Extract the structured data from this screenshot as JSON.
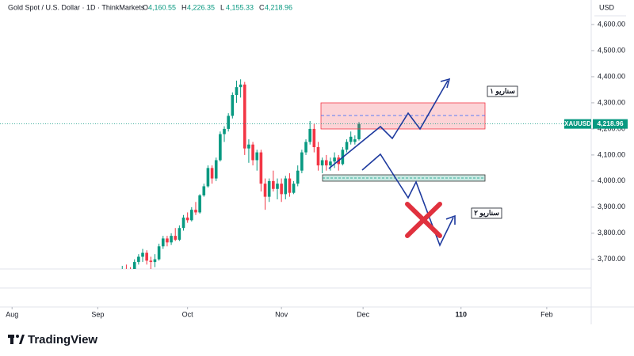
{
  "header": {
    "symbol": "Gold Spot / U.S. Dollar · 1D · ThinkMarkets",
    "ohlc": [
      {
        "label": "O",
        "value": "4,160.55"
      },
      {
        "label": "H",
        "value": "4,226.35"
      },
      {
        "label": "L",
        "value": "4,155.33"
      },
      {
        "label": "C",
        "value": "4,218.96"
      }
    ]
  },
  "currency": "USD",
  "ticker": "XAUUSD",
  "last_price_label": "4,218.96",
  "annotations": [
    "سناریو ۱",
    "سناریو ۲"
  ],
  "brand": "TradingView",
  "chart_data": {
    "type": "candlestick",
    "up_color": "#089981",
    "down_color": "#f23645",
    "x": [
      27,
      28,
      29,
      30,
      31,
      32,
      33,
      34,
      35,
      36,
      37,
      38,
      39,
      40,
      41,
      42,
      43,
      44,
      45,
      46,
      47,
      48,
      49,
      50,
      51,
      52,
      53,
      54,
      55,
      56,
      57,
      58,
      59,
      60,
      61,
      62,
      63,
      64,
      65,
      66,
      67,
      68,
      69,
      70,
      71,
      72,
      73,
      74,
      75,
      76,
      77,
      78,
      79,
      80,
      81,
      82,
      83,
      84,
      85
    ],
    "open": [
      3640,
      3660,
      3650,
      3645,
      3690,
      3710,
      3725,
      3695,
      3690,
      3700,
      3750,
      3780,
      3765,
      3790,
      3775,
      3820,
      3860,
      3850,
      3890,
      3880,
      3945,
      3980,
      4050,
      4010,
      4080,
      4180,
      4200,
      4250,
      4330,
      4360,
      4370,
      4125,
      4140,
      4080,
      4110,
      3990,
      3940,
      4000,
      3970,
      3990,
      3950,
      4010,
      3955,
      3990,
      4040,
      4110,
      4150,
      4200,
      4130,
      4060,
      4080,
      4060,
      4075,
      4090,
      4065,
      4120,
      4150,
      4150,
      4160.55
    ],
    "high": [
      3675,
      3680,
      3670,
      3700,
      3720,
      3740,
      3735,
      3710,
      3720,
      3760,
      3790,
      3790,
      3800,
      3820,
      3830,
      3870,
      3880,
      3900,
      3920,
      3950,
      3990,
      4060,
      4060,
      4090,
      4190,
      4210,
      4260,
      4340,
      4385,
      4390,
      4380,
      4160,
      4150,
      4120,
      4120,
      4010,
      4010,
      4040,
      4010,
      4010,
      4020,
      4030,
      4000,
      4060,
      4120,
      4160,
      4230,
      4220,
      4150,
      4090,
      4100,
      4090,
      4110,
      4100,
      4130,
      4160,
      4190,
      4175,
      4226.35
    ],
    "low": [
      3630,
      3640,
      3630,
      3640,
      3680,
      3690,
      3680,
      3660,
      3670,
      3695,
      3740,
      3750,
      3755,
      3770,
      3770,
      3810,
      3840,
      3845,
      3870,
      3875,
      3940,
      3975,
      3990,
      4000,
      4075,
      4150,
      4190,
      4240,
      4300,
      4320,
      4100,
      4070,
      4060,
      4040,
      3960,
      3890,
      3920,
      3960,
      3930,
      3920,
      3930,
      3940,
      3950,
      3980,
      4030,
      4100,
      4140,
      4110,
      4040,
      4030,
      4040,
      4040,
      4050,
      4040,
      4060,
      4110,
      4140,
      4140,
      4155.33
    ],
    "close": [
      3660,
      3650,
      3645,
      3690,
      3710,
      3725,
      3695,
      3690,
      3700,
      3750,
      3780,
      3765,
      3790,
      3775,
      3820,
      3860,
      3850,
      3890,
      3880,
      3945,
      3980,
      4050,
      4010,
      4080,
      4180,
      4200,
      4250,
      4330,
      4360,
      4370,
      4125,
      4140,
      4080,
      4110,
      3990,
      3940,
      4000,
      3970,
      3990,
      3950,
      4010,
      3955,
      3990,
      4040,
      4110,
      4150,
      4200,
      4130,
      4060,
      4080,
      4060,
      4075,
      4090,
      4065,
      4120,
      4150,
      4170,
      4160,
      4218.96
    ],
    "xlim": [
      -1.4,
      141.7
    ],
    "xticks": [
      {
        "value": 0,
        "label": "Aug"
      },
      {
        "value": 21,
        "label": "Sep"
      },
      {
        "value": 43,
        "label": "Oct"
      },
      {
        "value": 66,
        "label": "Nov"
      },
      {
        "value": 86,
        "label": "Dec"
      },
      110,
      {
        "value": 131,
        "label": "Feb"
      }
    ],
    "ylim": [
      3660,
      4694
    ],
    "yticks": [
      {
        "value": 3700,
        "label": "3,700.00"
      },
      {
        "value": 3800,
        "label": "3,800.00"
      },
      {
        "value": 3900,
        "label": "3,900.00"
      },
      {
        "value": 4000,
        "label": "4,000.00"
      },
      {
        "value": 4100,
        "label": "4,100.00"
      },
      {
        "value": 4200,
        "label": "4,200.00"
      },
      {
        "value": 4300,
        "label": "4,300.00"
      },
      {
        "value": 4400,
        "label": "4,400.00"
      },
      {
        "value": 4500,
        "label": "4,500.00"
      },
      {
        "value": 4600,
        "label": "4,600.00"
      }
    ]
  }
}
